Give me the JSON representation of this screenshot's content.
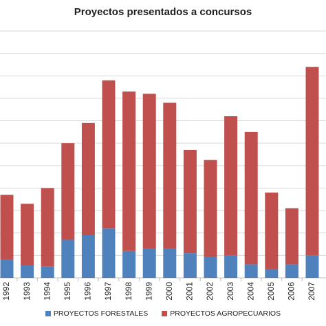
{
  "chart_data": {
    "type": "bar",
    "stacked": true,
    "title": "Proyectos presentados a concursos",
    "xlabel": "",
    "ylabel": "",
    "categories": [
      "1992",
      "1993",
      "1994",
      "1995",
      "1996",
      "1997",
      "1998",
      "1999",
      "2000",
      "2001",
      "2002",
      "2003",
      "2004",
      "2005",
      "2006",
      "2007"
    ],
    "ylim": [
      0,
      110
    ],
    "grid": true,
    "legend_position": "bottom",
    "series": [
      {
        "name": "PROYECTOS FORESTALES",
        "color": "#4f81bd",
        "values": [
          8,
          5.5,
          5,
          17,
          19,
          22,
          12,
          13,
          13,
          11,
          9.5,
          10,
          6,
          4,
          6,
          10
        ]
      },
      {
        "name": "PROYECTOS AGROPECUARIOS",
        "color": "#c0504d",
        "values": [
          29,
          27.5,
          35,
          43,
          50,
          66,
          71,
          69,
          65,
          46,
          43,
          62,
          59,
          34,
          25,
          84
        ]
      }
    ]
  }
}
